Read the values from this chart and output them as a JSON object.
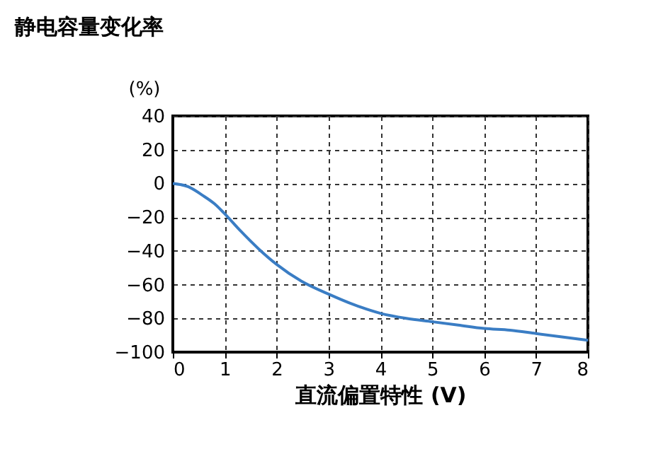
{
  "chart_data": {
    "type": "line",
    "title": "静电容量变化率",
    "ylabel": "(%)",
    "xlabel": "直流偏置特性 (V)",
    "x": [
      0,
      0.3,
      0.57,
      0.8,
      1.0,
      1.3,
      1.66,
      2.0,
      2.48,
      3.03,
      3.5,
      4.0,
      4.5,
      5.0,
      5.5,
      6.0,
      6.5,
      7.0,
      7.5,
      8.0
    ],
    "series": [
      {
        "color": "#3a7dc4",
        "values": [
          0,
          -2,
          -7,
          -12,
          -18,
          -28,
          -39,
          -48,
          -58,
          -66,
          -72,
          -77,
          -80,
          -82,
          -84,
          -86,
          -87,
          -89,
          -91,
          -93
        ]
      }
    ],
    "xlim": [
      0,
      8
    ],
    "ylim": [
      -100,
      40
    ],
    "xticks": [
      0,
      1,
      2,
      3,
      4,
      5,
      6,
      7,
      8
    ],
    "yticks": [
      -100,
      -80,
      -60,
      -40,
      -20,
      0,
      20,
      40
    ],
    "grid": true,
    "marker": "none",
    "line_style": "solid"
  }
}
